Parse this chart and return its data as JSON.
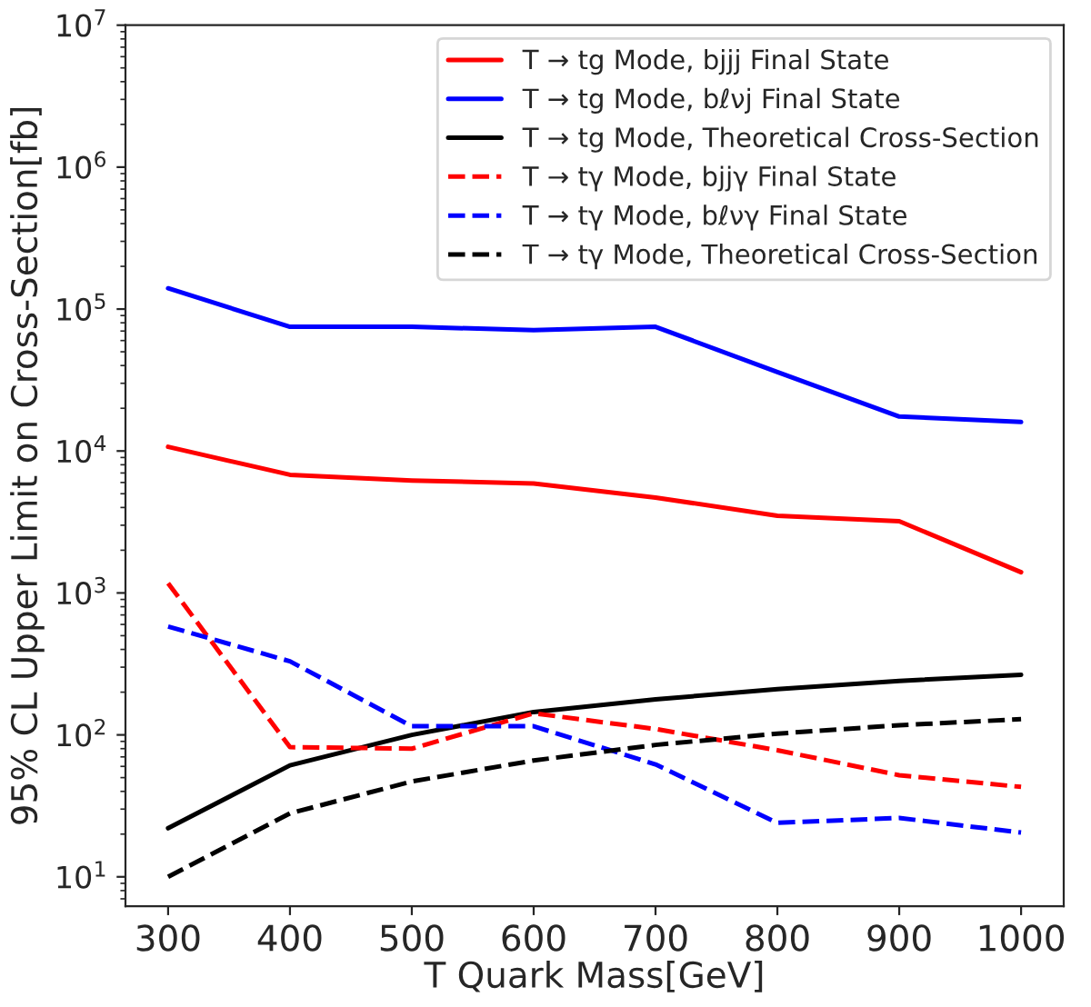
{
  "chart_data": {
    "type": "line",
    "xlabel": "T Quark Mass[GeV]",
    "ylabel": "95% CL Upper Limit on Cross-Section[fb]",
    "x": [
      300,
      400,
      500,
      600,
      700,
      800,
      900,
      1000
    ],
    "series": [
      {
        "name": "T → tg Mode, bjjj Final State",
        "color": "#ff0000",
        "line_style": "solid",
        "values": [
          10700,
          6800,
          6200,
          5900,
          4700,
          3500,
          3200,
          1400
        ]
      },
      {
        "name": "T → tg Mode, bℓνj Final State",
        "color": "#0000ff",
        "line_style": "solid",
        "values": [
          140000,
          75000,
          75000,
          71000,
          75000,
          36000,
          17500,
          16000
        ]
      },
      {
        "name": "T → tg Mode, Theoretical Cross-Section",
        "color": "#000000",
        "line_style": "solid",
        "values": [
          22,
          61,
          100,
          145,
          178,
          210,
          240,
          265
        ]
      },
      {
        "name": "T → tγ Mode, bjjγ Final State",
        "color": "#ff0000",
        "line_style": "dashed",
        "values": [
          1170,
          82,
          80,
          142,
          110,
          78,
          52,
          43
        ]
      },
      {
        "name": "T → tγ Mode, bℓνγ Final State",
        "color": "#0000ff",
        "line_style": "dashed",
        "values": [
          580,
          330,
          115,
          115,
          62,
          24,
          26,
          20.5
        ]
      },
      {
        "name": "T → tγ Mode, Theoretical Cross-Section",
        "color": "#000000",
        "line_style": "dashed",
        "values": [
          10,
          28,
          47,
          66,
          85,
          102,
          117,
          129
        ]
      }
    ],
    "log": "y",
    "xlim": [
      265,
      1035
    ],
    "ylim": [
      6.2,
      10000000
    ],
    "xticks": [
      300,
      400,
      500,
      600,
      700,
      800,
      900,
      1000
    ],
    "yticks": [
      {
        "value": 10,
        "label": "10$^{1}$"
      },
      {
        "value": 100,
        "label": "10$^{2}$"
      },
      {
        "value": 1000,
        "label": "10$^{3}$"
      },
      {
        "value": 10000,
        "label": "10$^{4}$"
      },
      {
        "value": 100000,
        "label": "10$^{5}$"
      },
      {
        "value": 1000000,
        "label": "10$^{6}$"
      },
      {
        "value": 10000000,
        "label": "10$^{7}$"
      }
    ],
    "legend": "top right",
    "grid": false,
    "marker": "none"
  }
}
